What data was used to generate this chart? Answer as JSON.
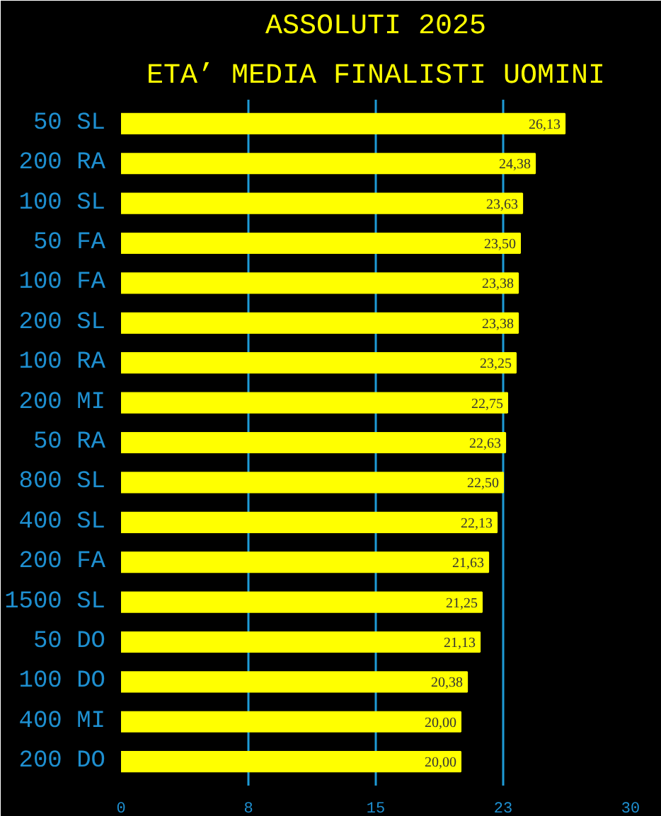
{
  "chart_data": {
    "type": "bar",
    "orientation": "horizontal",
    "title": "ASSOLUTI 2025",
    "subtitle": "ETA’ MEDIA FINALISTI UOMINI",
    "categories": [
      "50 SL",
      "200 RA",
      "100 SL",
      "50 FA",
      "100 FA",
      "200 SL",
      "100 RA",
      "200 MI",
      "50 RA",
      "800 SL",
      "400 SL",
      "200 FA",
      "1500 SL",
      "50 DO",
      "100 DO",
      "400 MI",
      "200 DO"
    ],
    "values": [
      26.13,
      24.38,
      23.63,
      23.5,
      23.38,
      23.38,
      23.25,
      22.75,
      22.63,
      22.5,
      22.13,
      21.63,
      21.25,
      21.13,
      20.38,
      20.0,
      20.0
    ],
    "value_labels": [
      "26,13",
      "24,38",
      "23,63",
      "23,50",
      "23,38",
      "23,38",
      "23,25",
      "22,75",
      "22,63",
      "22,50",
      "22,13",
      "21,63",
      "21,25",
      "21,13",
      "20,38",
      "20,00",
      "20,00"
    ],
    "color": "#ffff00",
    "xlim": [
      0,
      30
    ],
    "xticks": [
      0,
      {
        "value": 7.5,
        "label": "8"
      },
      15,
      {
        "value": 22.5,
        "label": "23"
      },
      30
    ],
    "grid": "x"
  }
}
